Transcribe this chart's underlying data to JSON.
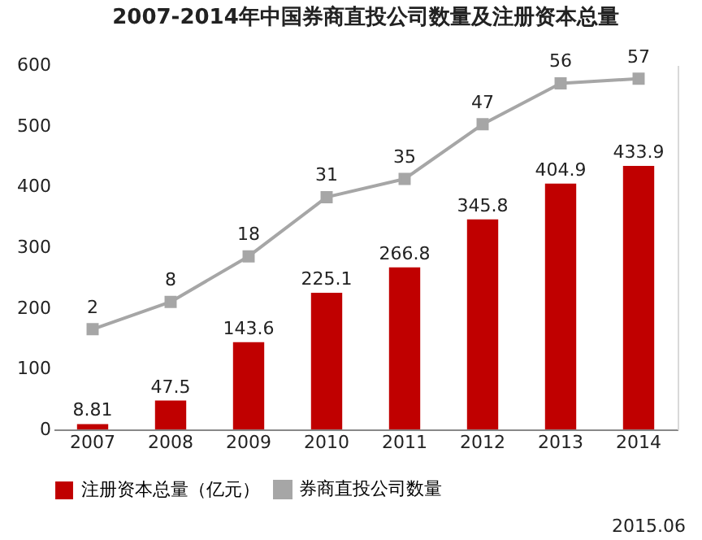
{
  "chart_data": {
    "type": "bar",
    "title": "2007-2014年中国券商直投公司数量及注册资本总量",
    "categories": [
      "2007",
      "2008",
      "2009",
      "2010",
      "2011",
      "2012",
      "2013",
      "2014"
    ],
    "series": [
      {
        "name": "注册资本总量（亿元）",
        "color": "#c00000",
        "values": [
          8.81,
          47.5,
          143.6,
          225.1,
          266.8,
          345.8,
          404.9,
          433.9
        ]
      },
      {
        "name": "券商直投公司数量",
        "type": "line",
        "axis": "y2",
        "color": "#a6a6a6",
        "marker": "square",
        "values": [
          2,
          8,
          18,
          31,
          35,
          47,
          56,
          57
        ]
      }
    ],
    "ylim": [
      0,
      600
    ],
    "yticks": [
      0,
      100,
      200,
      300,
      400,
      500,
      600
    ],
    "y2lim": [
      -20,
      60
    ],
    "data_labels": true,
    "legend": "bottom",
    "grid": false,
    "annotations": [
      "2015.06"
    ]
  }
}
